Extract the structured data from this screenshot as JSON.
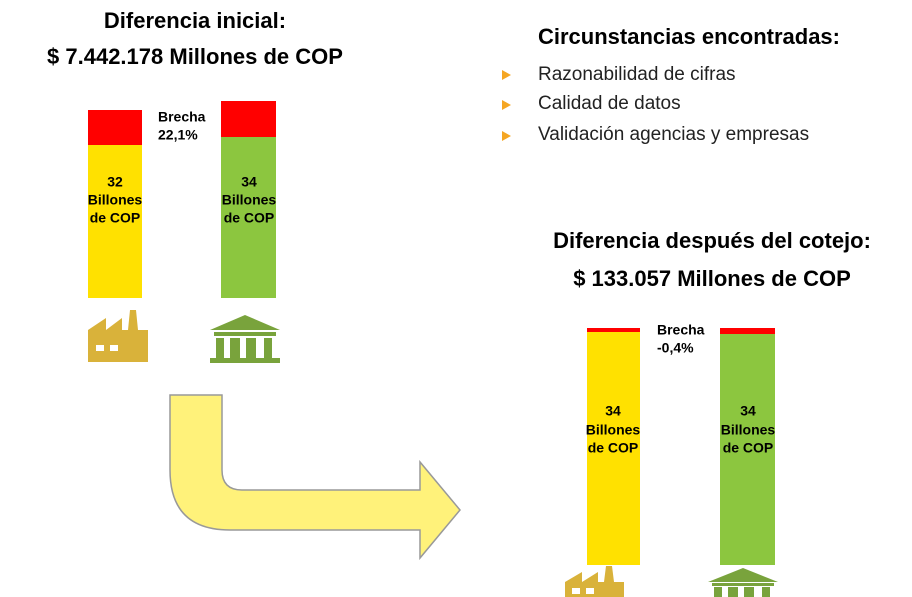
{
  "initial": {
    "title": "Diferencia inicial:",
    "subtitle": "$ 7.442.178 Millones de COP",
    "gap_label": "Brecha",
    "gap_value": "22,1%",
    "bars": [
      {
        "lines": [
          "32",
          "Billones",
          "de COP"
        ]
      },
      {
        "lines": [
          "34",
          "Billones",
          "de COP"
        ]
      }
    ]
  },
  "circumstances": {
    "title": "Circunstancias encontradas:",
    "items": [
      "Razonabilidad de cifras",
      "Calidad de datos",
      "Validación agencias y empresas"
    ]
  },
  "after": {
    "title": "Diferencia después del cotejo:",
    "subtitle": "$ 133.057 Millones de COP",
    "gap_label": "Brecha",
    "gap_value": "-0,4%",
    "bars": [
      {
        "lines": [
          "34",
          "Billones",
          "de COP"
        ]
      },
      {
        "lines": [
          "34",
          "Billones",
          "de COP"
        ]
      }
    ]
  }
}
